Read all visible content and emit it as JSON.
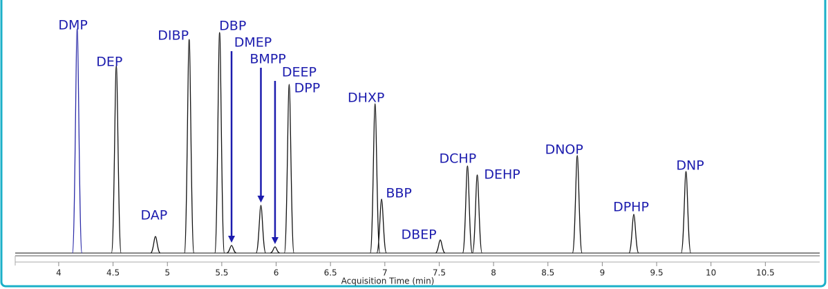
{
  "chart_data": {
    "type": "chromatogram",
    "x_label": "Acquisition Time (min)",
    "xlim": [
      3.6,
      11.0
    ],
    "xticks": [
      4,
      4.5,
      5,
      5.5,
      6,
      6.5,
      7,
      7.5,
      8,
      8.5,
      9,
      9.5,
      10,
      10.5
    ],
    "ylim": [
      0,
      340
    ],
    "color": "#111111",
    "peaks": {
      "names": [
        "DMP",
        "DEP",
        "DAP",
        "DIBP",
        "DBP",
        "DMEP",
        "BMPP",
        "DEEP",
        "DPP",
        "DHXP",
        "BBP",
        "DBEP",
        "DCHP",
        "DEHP",
        "DNOP",
        "DPHP",
        "DNP"
      ],
      "x": [
        4.17,
        4.53,
        4.89,
        5.2,
        5.48,
        5.59,
        5.86,
        5.99,
        6.12,
        6.91,
        6.97,
        7.51,
        7.76,
        7.85,
        8.77,
        9.29,
        9.77
      ],
      "values": [
        324,
        271,
        24,
        309,
        319,
        11,
        69,
        9,
        244,
        216,
        78,
        19,
        126,
        113,
        141,
        56,
        118
      ]
    }
  }
}
